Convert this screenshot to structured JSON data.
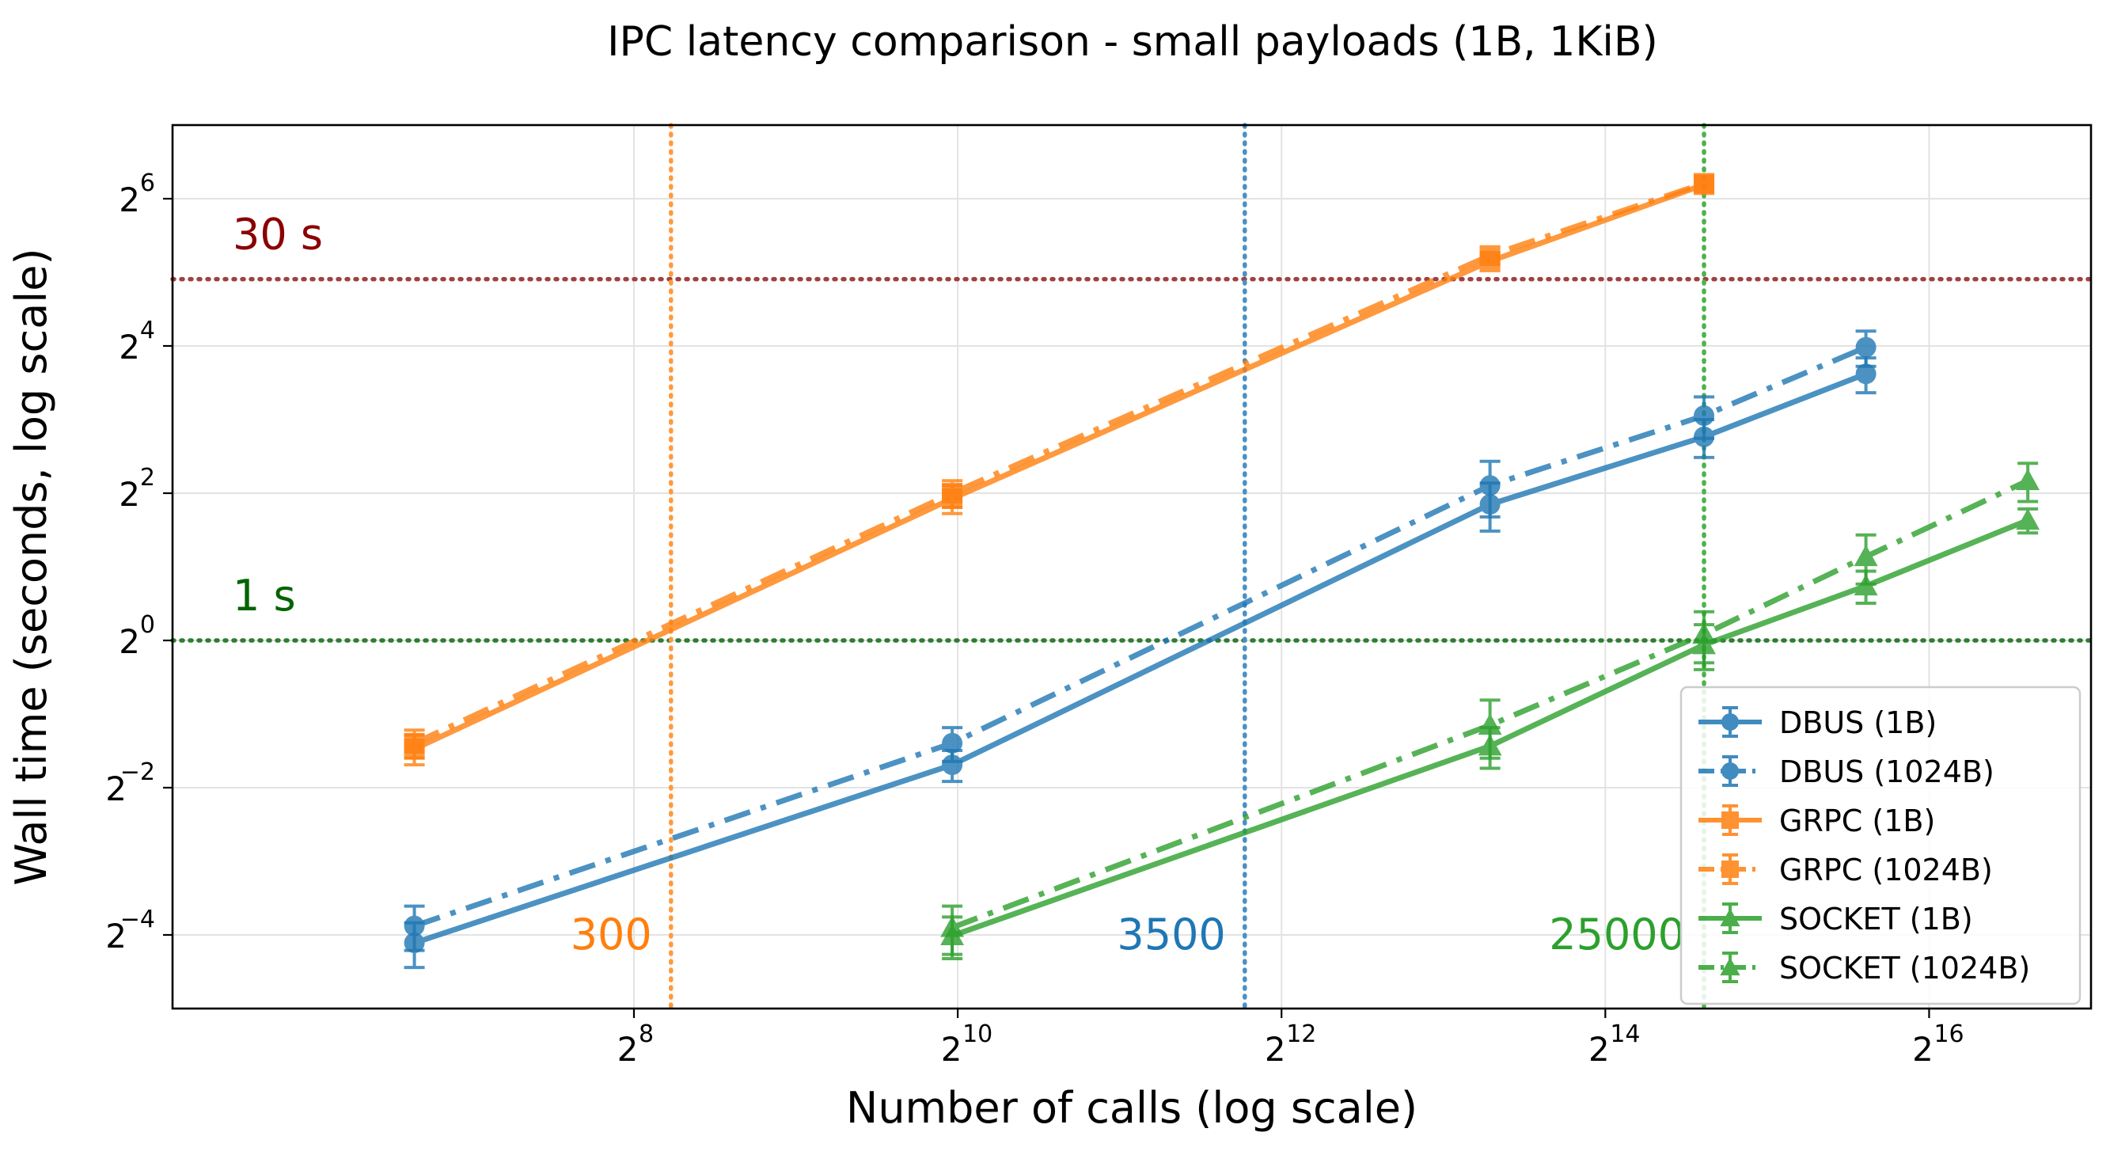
{
  "chart_data": {
    "type": "line",
    "title": "IPC latency comparison - small payloads (1B, 1KiB)",
    "xlabel": "Number of calls (log scale)",
    "ylabel": "Wall time (seconds, log scale)",
    "x_scale": "log2",
    "y_scale": "log2",
    "xlim_log2": [
      5.15,
      17.0
    ],
    "ylim_log2": [
      -5.0,
      7.0
    ],
    "x_ticks": [
      {
        "base": "2",
        "exp": "8",
        "value": 256
      },
      {
        "base": "2",
        "exp": "10",
        "value": 1024
      },
      {
        "base": "2",
        "exp": "12",
        "value": 4096
      },
      {
        "base": "2",
        "exp": "14",
        "value": 16384
      },
      {
        "base": "2",
        "exp": "16",
        "value": 65536
      }
    ],
    "y_ticks": [
      {
        "base": "2",
        "exp": "6",
        "value": 64
      },
      {
        "base": "2",
        "exp": "4",
        "value": 16
      },
      {
        "base": "2",
        "exp": "2",
        "value": 4
      },
      {
        "base": "2",
        "exp": "0",
        "value": 1
      },
      {
        "base": "2",
        "exp": "−2",
        "value": 0.25
      },
      {
        "base": "2",
        "exp": "−4",
        "value": 0.0625
      }
    ],
    "grid": true,
    "legend_position": "lower-right",
    "series": [
      {
        "name": "DBUS (1B)",
        "color": "#1f77b4",
        "marker": "circle",
        "linestyle": "solid",
        "x": [
          100,
          1000,
          10000,
          25000,
          50000
        ],
        "y": [
          0.058,
          0.31,
          3.6,
          6.8,
          12.3
        ],
        "err": [
          0.012,
          0.045,
          0.8,
          1.2,
          2.0
        ]
      },
      {
        "name": "DBUS (1024B)",
        "color": "#1f77b4",
        "marker": "circle",
        "linestyle": "dashdot",
        "x": [
          100,
          1000,
          10000,
          25000,
          50000
        ],
        "y": [
          0.068,
          0.38,
          4.3,
          8.3,
          15.8
        ],
        "err": [
          0.014,
          0.06,
          1.1,
          1.6,
          2.6
        ]
      },
      {
        "name": "GRPC (1B)",
        "color": "#ff7f0e",
        "marker": "square",
        "linestyle": "solid",
        "x": [
          100,
          1000,
          10000,
          25000
        ],
        "y": [
          0.36,
          3.8,
          35.5,
          73
        ],
        "err": [
          0.05,
          0.5,
          3.0,
          4.0
        ]
      },
      {
        "name": "GRPC (1024B)",
        "color": "#ff7f0e",
        "marker": "square",
        "linestyle": "dashdot",
        "x": [
          100,
          1000,
          10000,
          25000
        ],
        "y": [
          0.38,
          4.0,
          37.5,
          74
        ],
        "err": [
          0.05,
          0.5,
          3.0,
          4.0
        ]
      },
      {
        "name": "SOCKET (1B)",
        "color": "#2ca02c",
        "marker": "triangle",
        "linestyle": "solid",
        "x": [
          1000,
          10000,
          25000,
          50000,
          100000
        ],
        "y": [
          0.062,
          0.37,
          0.96,
          1.67,
          3.1
        ],
        "err": [
          0.012,
          0.07,
          0.2,
          0.25,
          0.35
        ]
      },
      {
        "name": "SOCKET (1024B)",
        "color": "#2ca02c",
        "marker": "triangle",
        "linestyle": "dashdot",
        "x": [
          1000,
          10000,
          25000,
          50000,
          100000
        ],
        "y": [
          0.067,
          0.45,
          1.06,
          2.2,
          4.5
        ],
        "err": [
          0.015,
          0.12,
          0.25,
          0.5,
          0.8
        ]
      }
    ],
    "threshold_lines": [
      {
        "axis": "y",
        "value": 30,
        "label": "30 s",
        "color": "#8b0000",
        "line_color": "#a04040"
      },
      {
        "axis": "y",
        "value": 1,
        "label": "1 s",
        "color": "#006400",
        "line_color": "#2e7d32"
      },
      {
        "axis": "x",
        "value": 300,
        "label": "300",
        "color": "#ff7f0e",
        "line_color": "#ff9a3c"
      },
      {
        "axis": "x",
        "value": 3500,
        "label": "3500",
        "color": "#1f77b4",
        "line_color": "#4a90c4"
      },
      {
        "axis": "x",
        "value": 25000,
        "label": "25000",
        "color": "#2ca02c",
        "line_color": "#4cb34c"
      }
    ]
  }
}
